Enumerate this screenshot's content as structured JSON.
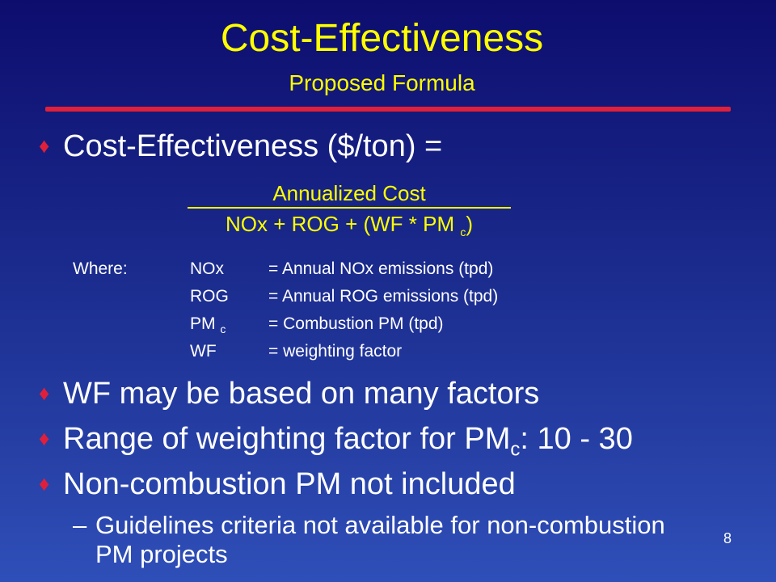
{
  "title": "Cost-Effectiveness",
  "subtitle": "Proposed Formula",
  "bullets": [
    {
      "text": "Cost-Effectiveness ($/ton) ="
    },
    {
      "text": "WF may be based on many factors"
    },
    {
      "text_prefix": "Range of weighting factor for PM",
      "subscript": "c",
      "text_suffix": ": 10 - 30"
    },
    {
      "text": "Non-combustion PM not included"
    }
  ],
  "formula": {
    "numerator": "Annualized Cost",
    "denominator_prefix": "NOx + ROG + (WF * PM ",
    "denominator_sub": "c",
    "denominator_suffix": ")"
  },
  "where": {
    "label": "Where:",
    "rows": [
      {
        "term": "NOx",
        "term_sub": "",
        "definition": "= Annual NOx emissions (tpd)"
      },
      {
        "term": "ROG",
        "term_sub": "",
        "definition": "= Annual ROG emissions (tpd)"
      },
      {
        "term": "PM ",
        "term_sub": "c",
        "definition": "= Combustion PM (tpd)"
      },
      {
        "term": "WF",
        "term_sub": "",
        "definition": "= weighting factor"
      }
    ]
  },
  "sub_bullet": {
    "dash": "–",
    "text": "Guidelines criteria not available for non-combustion PM projects"
  },
  "page_number": "8",
  "colors": {
    "title": "#ffff00",
    "rule": "#e0203a",
    "bullet_marker": "#e0203a",
    "body_text": "#ffffff",
    "background_top": "#0d0d6e",
    "background_bottom": "#2f4fb8"
  },
  "icons": {
    "bullet_marker": "diamond-icon"
  }
}
